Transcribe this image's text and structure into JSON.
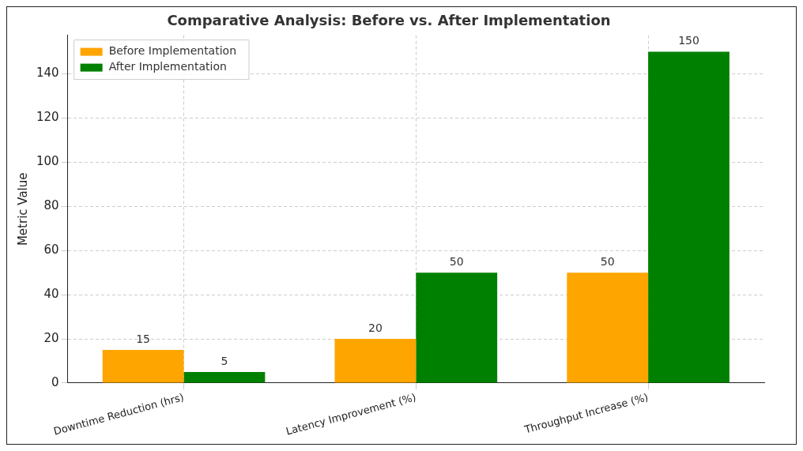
{
  "chart_data": {
    "type": "bar",
    "title": "Comparative Analysis: Before vs. After Implementation",
    "ylabel": "Metric Value",
    "categories": [
      "Downtime Reduction (hrs)",
      "Latency Improvement (%)",
      "Throughput Increase (%)"
    ],
    "series": [
      {
        "name": "Before Implementation",
        "color": "#ffa500",
        "values": [
          15,
          20,
          50
        ]
      },
      {
        "name": "After Implementation",
        "color": "#008000",
        "values": [
          5,
          50,
          150
        ]
      }
    ],
    "ylim": [
      0,
      157.5
    ],
    "yticks": [
      0,
      20,
      40,
      60,
      80,
      100,
      120,
      140
    ],
    "grid": true,
    "legend": "top left",
    "data_labels": true
  }
}
